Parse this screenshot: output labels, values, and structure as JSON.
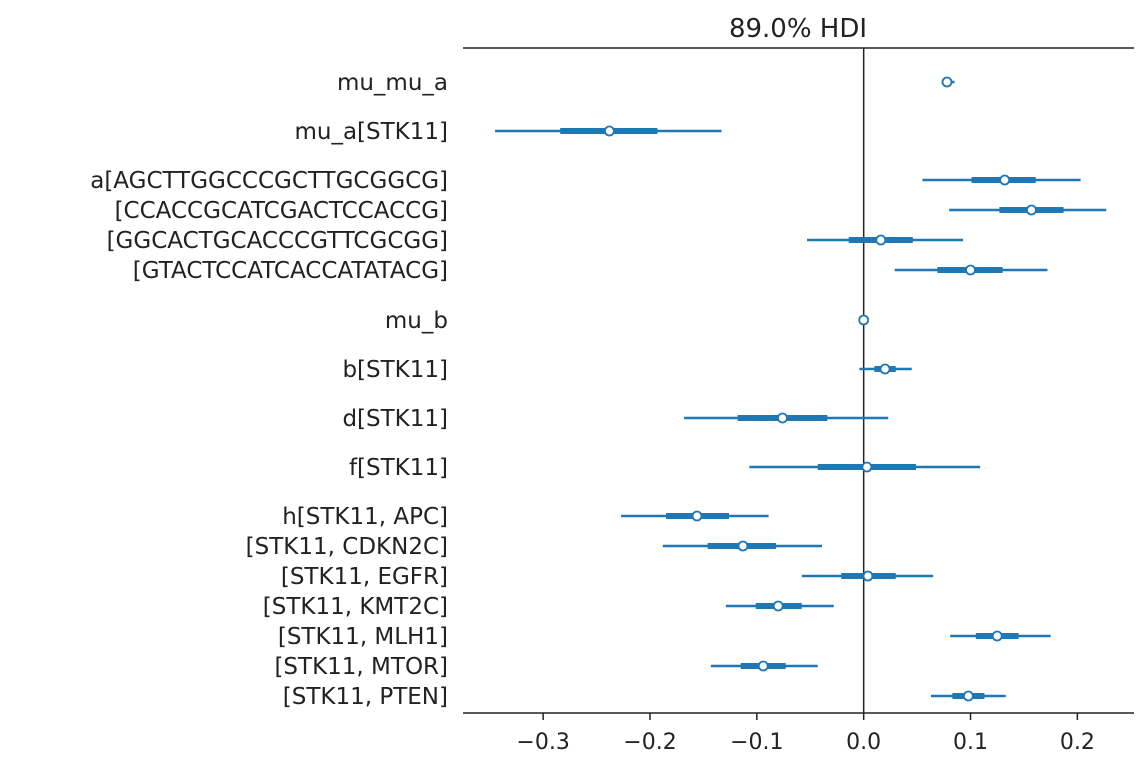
{
  "chart_data": {
    "type": "forest",
    "title": "89.0% HDI",
    "xlim": [
      -0.375,
      0.253
    ],
    "x_ticks": [
      -0.3,
      -0.2,
      -0.1,
      0.0,
      0.1,
      0.2
    ],
    "x_tick_labels": [
      "−0.3",
      "−0.2",
      "−0.1",
      "0.0",
      "0.1",
      "0.2"
    ],
    "reference_line": 0.0,
    "series_color": "#1f77b4",
    "rows": [
      {
        "label": "mu_mu_a",
        "mean": 0.078,
        "hdi_low": 0.073,
        "hdi_high": 0.085,
        "iqr_low": 0.075,
        "iqr_high": 0.082
      },
      {
        "label": "mu_a[STK11]",
        "mean": -0.238,
        "hdi_low": -0.345,
        "hdi_high": -0.133,
        "iqr_low": -0.284,
        "iqr_high": -0.193
      },
      {
        "label": "a[AGCTTGGCCCGCTTGCGGCG]",
        "mean": 0.132,
        "hdi_low": 0.055,
        "hdi_high": 0.203,
        "iqr_low": 0.101,
        "iqr_high": 0.161
      },
      {
        "label": "[CCACCGCATCGACTCCACCG]",
        "mean": 0.157,
        "hdi_low": 0.08,
        "hdi_high": 0.227,
        "iqr_low": 0.127,
        "iqr_high": 0.187
      },
      {
        "label": "[GGCACTGCACCCGTTCGCGG]",
        "mean": 0.016,
        "hdi_low": -0.053,
        "hdi_high": 0.093,
        "iqr_low": -0.014,
        "iqr_high": 0.046
      },
      {
        "label": "[GTACTCCATCACCATATACG]",
        "mean": 0.1,
        "hdi_low": 0.029,
        "hdi_high": 0.172,
        "iqr_low": 0.069,
        "iqr_high": 0.13
      },
      {
        "label": "mu_b",
        "mean": 0.0,
        "hdi_low": -0.002,
        "hdi_high": 0.002,
        "iqr_low": -0.001,
        "iqr_high": 0.001
      },
      {
        "label": "b[STK11]",
        "mean": 0.02,
        "hdi_low": -0.004,
        "hdi_high": 0.045,
        "iqr_low": 0.01,
        "iqr_high": 0.03
      },
      {
        "label": "d[STK11]",
        "mean": -0.076,
        "hdi_low": -0.168,
        "hdi_high": 0.023,
        "iqr_low": -0.118,
        "iqr_high": -0.034
      },
      {
        "label": "f[STK11]",
        "mean": 0.003,
        "hdi_low": -0.107,
        "hdi_high": 0.109,
        "iqr_low": -0.043,
        "iqr_high": 0.049
      },
      {
        "label": "h[STK11, APC]",
        "mean": -0.156,
        "hdi_low": -0.227,
        "hdi_high": -0.089,
        "iqr_low": -0.185,
        "iqr_high": -0.126
      },
      {
        "label": "[STK11, CDKN2C]",
        "mean": -0.113,
        "hdi_low": -0.188,
        "hdi_high": -0.039,
        "iqr_low": -0.146,
        "iqr_high": -0.082
      },
      {
        "label": "[STK11, EGFR]",
        "mean": 0.004,
        "hdi_low": -0.058,
        "hdi_high": 0.065,
        "iqr_low": -0.021,
        "iqr_high": 0.03
      },
      {
        "label": "[STK11, KMT2C]",
        "mean": -0.08,
        "hdi_low": -0.129,
        "hdi_high": -0.028,
        "iqr_low": -0.101,
        "iqr_high": -0.058
      },
      {
        "label": "[STK11, MLH1]",
        "mean": 0.125,
        "hdi_low": 0.081,
        "hdi_high": 0.175,
        "iqr_low": 0.105,
        "iqr_high": 0.145
      },
      {
        "label": "[STK11, MTOR]",
        "mean": -0.094,
        "hdi_low": -0.143,
        "hdi_high": -0.043,
        "iqr_low": -0.115,
        "iqr_high": -0.073
      },
      {
        "label": "[STK11, PTEN]",
        "mean": 0.098,
        "hdi_low": 0.063,
        "hdi_high": 0.133,
        "iqr_low": 0.083,
        "iqr_high": 0.113
      }
    ]
  }
}
